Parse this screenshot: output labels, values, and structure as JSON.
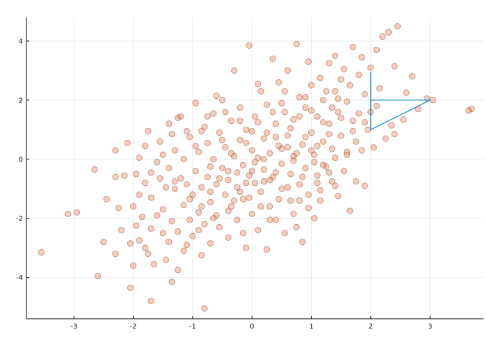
{
  "chart_data": {
    "type": "scatter",
    "title": "",
    "xlabel": "",
    "ylabel": "",
    "xlim": [
      -3.8,
      3.9
    ],
    "ylim": [
      -5.4,
      4.8
    ],
    "grid": true,
    "legend": "none",
    "x_ticks": [
      {
        "value": -3,
        "label": "-3"
      },
      {
        "value": -2,
        "label": "-2"
      },
      {
        "value": -1,
        "label": "-1"
      },
      {
        "value": 0,
        "label": "0"
      },
      {
        "value": 1,
        "label": "1"
      },
      {
        "value": 2,
        "label": "2"
      },
      {
        "value": 3,
        "label": "3"
      }
    ],
    "y_ticks": [
      {
        "value": -4,
        "label": "-4"
      },
      {
        "value": -2,
        "label": "-2"
      },
      {
        "value": 0,
        "label": "0"
      },
      {
        "value": 2,
        "label": "2"
      },
      {
        "value": 4,
        "label": "4"
      }
    ],
    "series": [
      {
        "marker": "circle",
        "color": "#e26f46",
        "stroke": "#8a3a1e",
        "points": [
          [
            -3.55,
            -3.15
          ],
          [
            -3.1,
            -1.85
          ],
          [
            -2.95,
            -1.8
          ],
          [
            -2.65,
            -0.35
          ],
          [
            -2.6,
            -3.95
          ],
          [
            -2.5,
            -2.8
          ],
          [
            -2.45,
            -1.35
          ],
          [
            -2.3,
            -3.2
          ],
          [
            -2.3,
            0.3
          ],
          [
            -2.2,
            -2.4
          ],
          [
            -2.15,
            -0.55
          ],
          [
            -2.1,
            0.55
          ],
          [
            -2.05,
            -4.35
          ],
          [
            -2.05,
            -2.85
          ],
          [
            -2.0,
            -3.6
          ],
          [
            -2.0,
            -1.6
          ],
          [
            -1.95,
            -0.5
          ],
          [
            -1.9,
            -2.75
          ],
          [
            -1.9,
            0.05
          ],
          [
            -1.85,
            -1.95
          ],
          [
            -1.8,
            -3.0
          ],
          [
            -1.8,
            -0.8
          ],
          [
            -1.75,
            0.95
          ],
          [
            -1.7,
            -4.8
          ],
          [
            -1.7,
            -2.35
          ],
          [
            -1.7,
            -1.3
          ],
          [
            -1.65,
            -3.55
          ],
          [
            -1.6,
            -0.1
          ],
          [
            -1.55,
            0.6
          ],
          [
            -1.5,
            -2.5
          ],
          [
            -1.5,
            -1.7
          ],
          [
            -1.45,
            -0.95
          ],
          [
            -1.45,
            -3.4
          ],
          [
            -1.4,
            -0.3
          ],
          [
            -1.4,
            1.2
          ],
          [
            -1.35,
            -4.15
          ],
          [
            -1.35,
            -2.1
          ],
          [
            -1.3,
            -1.0
          ],
          [
            -1.3,
            0.3
          ],
          [
            -1.25,
            -2.45
          ],
          [
            -1.25,
            -3.75
          ],
          [
            -1.2,
            -0.65
          ],
          [
            -1.2,
            1.45
          ],
          [
            -1.15,
            -1.55
          ],
          [
            -1.15,
            0.0
          ],
          [
            -1.1,
            -2.9
          ],
          [
            -1.1,
            -0.85
          ],
          [
            -1.05,
            0.75
          ],
          [
            -1.0,
            -1.2
          ],
          [
            -1.0,
            -2.6
          ],
          [
            -0.95,
            -0.4
          ],
          [
            -0.95,
            1.9
          ],
          [
            -0.9,
            -1.8
          ],
          [
            -0.9,
            0.25
          ],
          [
            -0.85,
            -3.25
          ],
          [
            -0.85,
            -0.95
          ],
          [
            -0.8,
            -5.05
          ],
          [
            -0.8,
            -2.2
          ],
          [
            -0.8,
            1.1
          ],
          [
            -0.75,
            -0.6
          ],
          [
            -0.75,
            0.55
          ],
          [
            -0.7,
            -1.45
          ],
          [
            -0.7,
            -2.85
          ],
          [
            -0.65,
            0.0
          ],
          [
            -0.65,
            1.55
          ],
          [
            -0.6,
            -0.85
          ],
          [
            -0.6,
            -1.9
          ],
          [
            -0.55,
            0.9
          ],
          [
            -0.55,
            -2.3
          ],
          [
            -0.5,
            -0.3
          ],
          [
            -0.5,
            2.0
          ],
          [
            -0.45,
            -1.2
          ],
          [
            -0.45,
            0.4
          ],
          [
            -0.4,
            -2.65
          ],
          [
            -0.4,
            -0.7
          ],
          [
            -0.35,
            1.3
          ],
          [
            -0.35,
            -1.6
          ],
          [
            -0.3,
            0.1
          ],
          [
            -0.3,
            3.0
          ],
          [
            -0.25,
            -0.95
          ],
          [
            -0.25,
            -2.05
          ],
          [
            -0.2,
            0.65
          ],
          [
            -0.2,
            1.75
          ],
          [
            -0.15,
            -1.35
          ],
          [
            -0.15,
            -0.2
          ],
          [
            -0.1,
            -3.0
          ],
          [
            -0.1,
            1.0
          ],
          [
            -0.05,
            -0.55
          ],
          [
            -0.05,
            3.85
          ],
          [
            0.0,
            0.3
          ],
          [
            0.0,
            -1.85
          ],
          [
            0.05,
            1.45
          ],
          [
            0.05,
            -0.8
          ],
          [
            0.1,
            -2.4
          ],
          [
            0.1,
            0.05
          ],
          [
            0.15,
            2.3
          ],
          [
            0.15,
            -1.1
          ],
          [
            0.2,
            0.7
          ],
          [
            0.2,
            -0.35
          ],
          [
            0.25,
            -3.05
          ],
          [
            0.25,
            1.85
          ],
          [
            0.3,
            -1.6
          ],
          [
            0.3,
            0.2
          ],
          [
            0.35,
            3.4
          ],
          [
            0.35,
            -0.6
          ],
          [
            0.4,
            1.2
          ],
          [
            0.4,
            -2.05
          ],
          [
            0.45,
            0.45
          ],
          [
            0.45,
            2.6
          ],
          [
            0.5,
            -1.0
          ],
          [
            0.5,
            -0.15
          ],
          [
            0.55,
            1.6
          ],
          [
            0.55,
            -2.5
          ],
          [
            0.6,
            0.8
          ],
          [
            0.6,
            3.0
          ],
          [
            0.65,
            -0.5
          ],
          [
            0.65,
            -1.4
          ],
          [
            0.7,
            1.35
          ],
          [
            0.7,
            0.1
          ],
          [
            0.75,
            3.9
          ],
          [
            0.75,
            -2.3
          ],
          [
            0.8,
            2.1
          ],
          [
            0.8,
            -0.85
          ],
          [
            0.85,
            0.5
          ],
          [
            0.85,
            -2.8
          ],
          [
            0.9,
            1.75
          ],
          [
            0.9,
            -0.3
          ],
          [
            0.95,
            3.3
          ],
          [
            0.95,
            -1.2
          ],
          [
            1.0,
            0.9
          ],
          [
            1.0,
            2.5
          ],
          [
            1.05,
            -2.0
          ],
          [
            1.05,
            0.15
          ],
          [
            1.1,
            1.45
          ],
          [
            1.1,
            -0.55
          ],
          [
            1.15,
            2.75
          ],
          [
            1.15,
            -1.05
          ],
          [
            1.2,
            0.6
          ],
          [
            1.2,
            2.0
          ],
          [
            1.25,
            -0.25
          ],
          [
            1.3,
            1.2
          ],
          [
            1.3,
            3.25
          ],
          [
            1.35,
            -0.75
          ],
          [
            1.35,
            0.35
          ],
          [
            1.4,
            2.3
          ],
          [
            1.4,
            3.5
          ],
          [
            1.45,
            1.6
          ],
          [
            1.45,
            -1.25
          ],
          [
            1.5,
            0.8
          ],
          [
            1.5,
            2.7
          ],
          [
            1.55,
            -0.4
          ],
          [
            1.55,
            3.05
          ],
          [
            1.6,
            1.95
          ],
          [
            1.6,
            0.25
          ],
          [
            1.65,
            -1.75
          ],
          [
            1.65,
            2.5
          ],
          [
            1.7,
            1.3
          ],
          [
            1.7,
            3.8
          ],
          [
            1.75,
            -0.75
          ],
          [
            1.75,
            0.6
          ],
          [
            1.8,
            2.85
          ],
          [
            1.8,
            1.55
          ],
          [
            1.85,
            0.3
          ],
          [
            1.85,
            3.45
          ],
          [
            1.9,
            -0.9
          ],
          [
            1.9,
            2.2
          ],
          [
            1.95,
            1.0
          ],
          [
            2.0,
            3.1
          ],
          [
            2.0,
            1.6
          ],
          [
            2.05,
            0.4
          ],
          [
            2.1,
            3.7
          ],
          [
            2.1,
            1.8
          ],
          [
            2.15,
            2.4
          ],
          [
            2.2,
            4.15
          ],
          [
            2.25,
            0.7
          ],
          [
            2.3,
            4.3
          ],
          [
            2.35,
            1.15
          ],
          [
            2.4,
            3.15
          ],
          [
            2.4,
            0.85
          ],
          [
            2.45,
            4.5
          ],
          [
            2.55,
            1.35
          ],
          [
            2.6,
            2.25
          ],
          [
            2.7,
            2.8
          ],
          [
            2.8,
            1.7
          ],
          [
            2.95,
            2.05
          ],
          [
            3.05,
            2.0
          ],
          [
            3.65,
            1.65
          ],
          [
            3.7,
            1.7
          ],
          [
            -1.8,
            0.45
          ],
          [
            -1.6,
            -1.9
          ],
          [
            -1.4,
            -2.8
          ],
          [
            -1.35,
            0.85
          ],
          [
            -1.15,
            -3.1
          ],
          [
            -1.05,
            -1.35
          ],
          [
            -0.95,
            0.45
          ],
          [
            -0.85,
            -1.6
          ],
          [
            -0.75,
            1.45
          ],
          [
            -0.7,
            -0.25
          ],
          [
            -0.65,
            -2.0
          ],
          [
            -0.55,
            -0.65
          ],
          [
            -0.45,
            1.6
          ],
          [
            -0.4,
            -1.75
          ],
          [
            -0.35,
            0.2
          ],
          [
            -0.25,
            -0.45
          ],
          [
            -0.2,
            1.3
          ],
          [
            -0.15,
            -2.5
          ],
          [
            -0.1,
            0.55
          ],
          [
            -0.05,
            -1.3
          ],
          [
            0.0,
            0.95
          ],
          [
            0.05,
            -0.1
          ],
          [
            0.1,
            2.55
          ],
          [
            0.15,
            -1.6
          ],
          [
            0.2,
            0.0
          ],
          [
            0.25,
            0.9
          ],
          [
            0.3,
            -2.05
          ],
          [
            0.35,
            1.6
          ],
          [
            0.4,
            -0.45
          ],
          [
            0.45,
            -1.35
          ],
          [
            0.5,
            0.35
          ],
          [
            0.55,
            2.3
          ],
          [
            0.6,
            -0.95
          ],
          [
            0.65,
            1.05
          ],
          [
            0.7,
            -1.85
          ],
          [
            0.75,
            0.2
          ],
          [
            0.8,
            1.45
          ],
          [
            0.85,
            -0.6
          ],
          [
            0.9,
            0.75
          ],
          [
            0.95,
            -1.65
          ],
          [
            1.0,
            1.65
          ],
          [
            1.05,
            -0.1
          ],
          [
            1.1,
            0.45
          ],
          [
            1.15,
            -1.4
          ],
          [
            1.2,
            1.25
          ],
          [
            1.25,
            2.3
          ],
          [
            1.3,
            -0.45
          ],
          [
            1.35,
            1.75
          ],
          [
            1.4,
            0.05
          ],
          [
            1.45,
            2.05
          ],
          [
            -1.9,
            -1.2
          ],
          [
            -1.7,
            -0.45
          ],
          [
            -1.5,
            0.15
          ],
          [
            -1.3,
            -0.75
          ],
          [
            -1.1,
            0.95
          ],
          [
            -0.9,
            -2.4
          ],
          [
            -0.7,
            -1.1
          ],
          [
            -0.5,
            0.65
          ],
          [
            -0.3,
            -1.4
          ],
          [
            -0.1,
            -0.8
          ],
          [
            0.1,
            1.25
          ],
          [
            0.3,
            -0.7
          ],
          [
            0.5,
            1.9
          ],
          [
            0.7,
            -0.05
          ],
          [
            0.9,
            2.1
          ],
          [
            1.1,
            -0.8
          ],
          [
            1.3,
            0.85
          ],
          [
            1.5,
            1.4
          ],
          [
            1.7,
            0.95
          ],
          [
            1.9,
            1.25
          ],
          [
            -2.3,
            -0.6
          ],
          [
            -2.25,
            -1.65
          ],
          [
            -1.95,
            -2.25
          ],
          [
            -1.75,
            -3.2
          ],
          [
            -1.55,
            -0.65
          ],
          [
            -1.25,
            1.4
          ],
          [
            -1.05,
            -2.05
          ],
          [
            -0.85,
            0.95
          ],
          [
            -0.6,
            2.15
          ],
          [
            -0.4,
            -0.4
          ],
          [
            -0.2,
            -1.1
          ],
          [
            0.0,
            -0.4
          ],
          [
            0.2,
            -0.75
          ],
          [
            0.4,
            0.75
          ],
          [
            0.6,
            0.4
          ],
          [
            0.8,
            -1.4
          ],
          [
            1.0,
            0.3
          ],
          [
            1.2,
            -0.2
          ],
          [
            1.4,
            -0.9
          ],
          [
            1.6,
            0.15
          ]
        ]
      }
    ],
    "overlays": [
      {
        "type": "line",
        "color": "#1f8fd4",
        "points": [
          [
            2.0,
            2.95
          ],
          [
            2.0,
            1.0
          ],
          [
            3.0,
            2.0
          ],
          [
            2.0,
            2.0
          ]
        ]
      }
    ]
  }
}
